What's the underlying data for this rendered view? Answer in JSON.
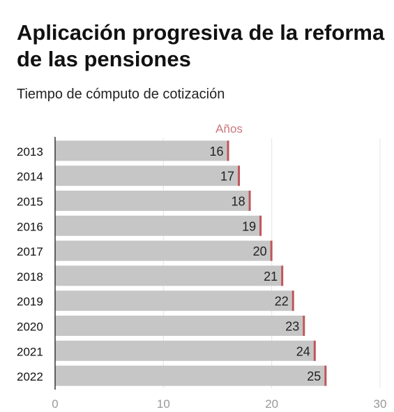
{
  "chart_data": {
    "type": "bar",
    "orientation": "horizontal",
    "title": "Aplicación progresiva de la reforma de las pensiones",
    "subtitle": "Tiempo de cómputo de cotización",
    "series_label": "Años",
    "categories": [
      "2013",
      "2014",
      "2015",
      "2016",
      "2017",
      "2018",
      "2019",
      "2020",
      "2021",
      "2022"
    ],
    "values": [
      16,
      17,
      18,
      19,
      20,
      21,
      22,
      23,
      24,
      25
    ],
    "xlim": [
      0,
      30
    ],
    "xticks": [
      0,
      10,
      20,
      30
    ],
    "grid": true,
    "colors": {
      "bar": "#c6c6c6",
      "marker": "#c0555a",
      "label_accent": "#c9777c",
      "tick": "#999999"
    }
  }
}
